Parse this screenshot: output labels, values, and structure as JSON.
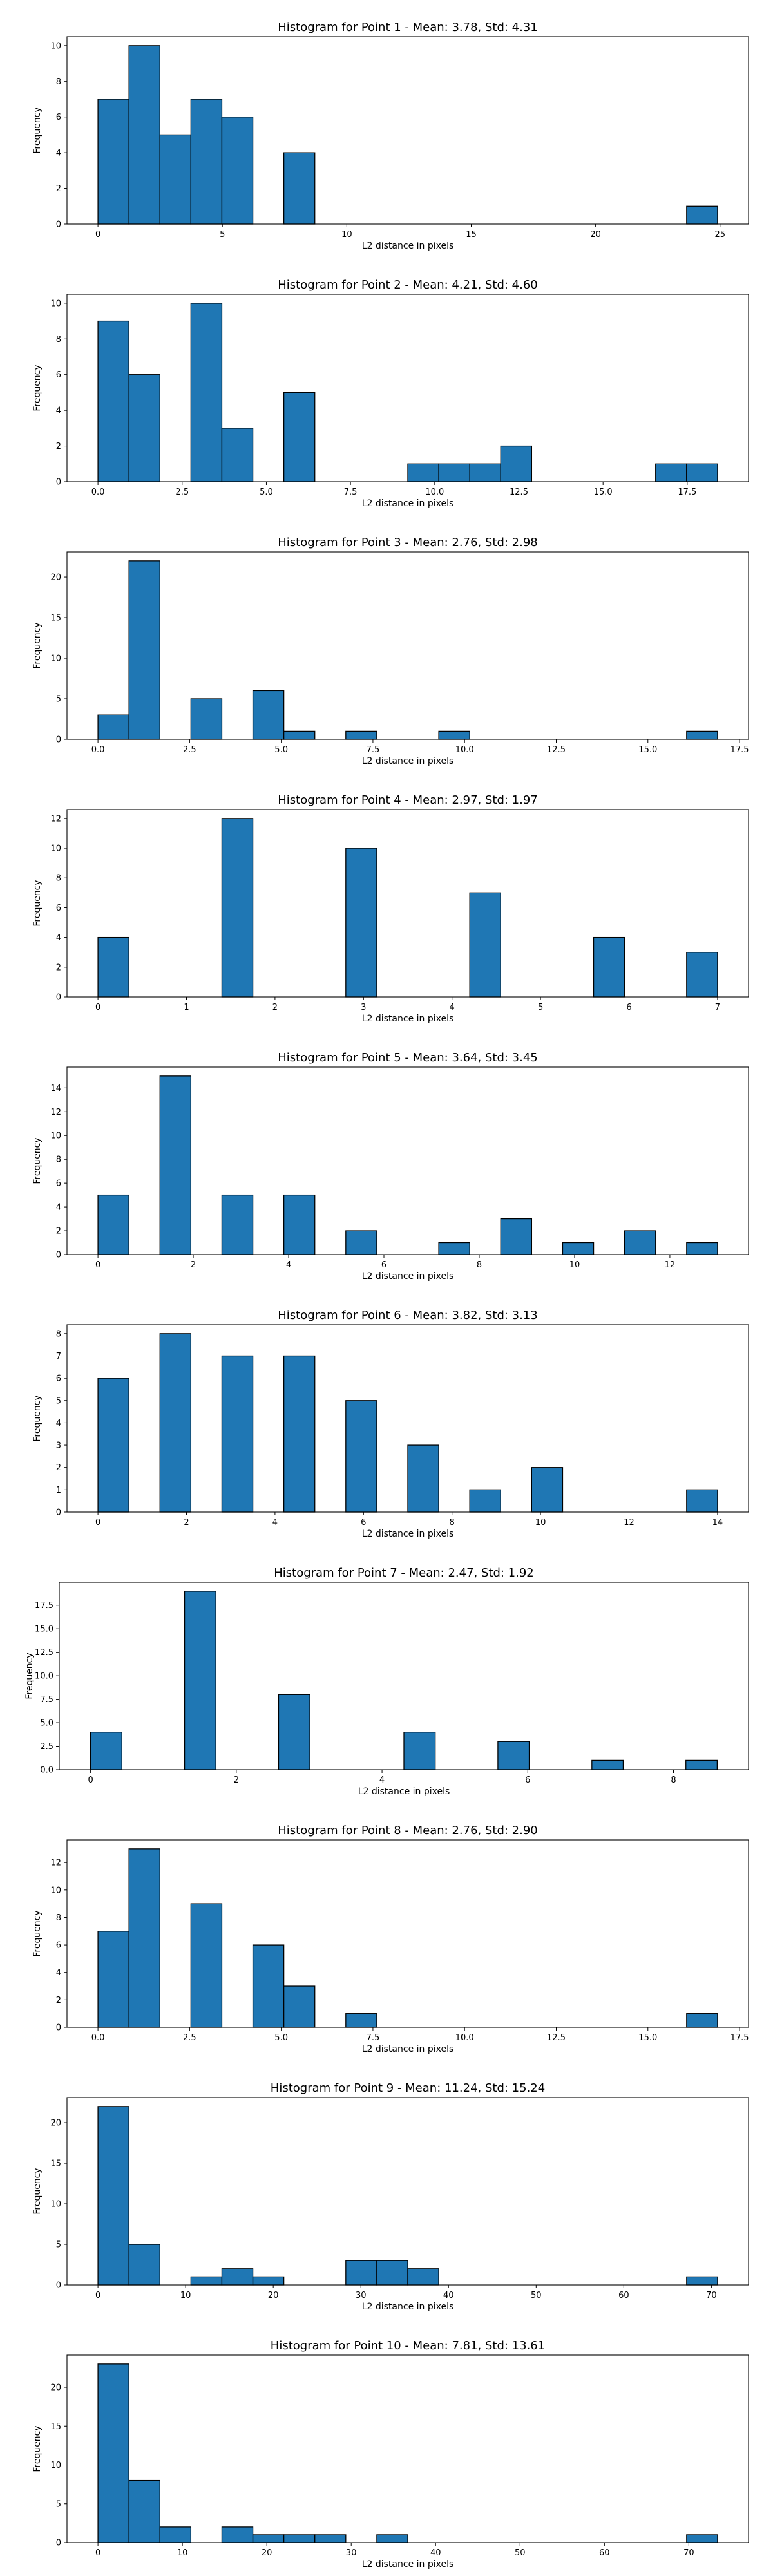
{
  "chart_data": [
    {
      "type": "bar",
      "title": "Histogram for Point 1 - Mean: 3.78, Std: 4.31",
      "xlabel": "L2 distance in pixels",
      "ylabel": "Frequency",
      "xlim": [
        -1.245,
        26.145
      ],
      "ylim": [
        0,
        10.5
      ],
      "xticks": [
        0,
        5,
        10,
        15,
        20,
        25
      ],
      "xtick_labels": [
        "0",
        "5",
        "10",
        "15",
        "20",
        "25"
      ],
      "yticks": [
        0,
        2,
        4,
        6,
        8,
        10
      ],
      "ytick_labels": [
        "0",
        "2",
        "4",
        "6",
        "8",
        "10"
      ],
      "bin_start": 0,
      "bin_width": 1.245,
      "bars": [
        {
          "bin": 0,
          "value": 7
        },
        {
          "bin": 1,
          "value": 10
        },
        {
          "bin": 2,
          "value": 5
        },
        {
          "bin": 3,
          "value": 7
        },
        {
          "bin": 4,
          "value": 6
        },
        {
          "bin": 6,
          "value": 4
        },
        {
          "bin": 19,
          "value": 1
        }
      ],
      "grid": false,
      "bar_color": "#1f77b4",
      "edge_color": "#000000"
    },
    {
      "type": "bar",
      "title": "Histogram for Point 2 - Mean: 4.21, Std: 4.60",
      "xlabel": "L2 distance in pixels",
      "ylabel": "Frequency",
      "xlim": [
        -0.92,
        19.32
      ],
      "ylim": [
        0,
        10.5
      ],
      "xticks": [
        0,
        2.5,
        5,
        7.5,
        10,
        12.5,
        15,
        17.5
      ],
      "xtick_labels": [
        "0.0",
        "2.5",
        "5.0",
        "7.5",
        "10.0",
        "12.5",
        "15.0",
        "17.5"
      ],
      "yticks": [
        0,
        2,
        4,
        6,
        8,
        10
      ],
      "ytick_labels": [
        "0",
        "2",
        "4",
        "6",
        "8",
        "10"
      ],
      "bin_start": 0,
      "bin_width": 0.92,
      "bars": [
        {
          "bin": 0,
          "value": 9
        },
        {
          "bin": 1,
          "value": 6
        },
        {
          "bin": 3,
          "value": 10
        },
        {
          "bin": 4,
          "value": 3
        },
        {
          "bin": 6,
          "value": 5
        },
        {
          "bin": 10,
          "value": 1
        },
        {
          "bin": 11,
          "value": 1
        },
        {
          "bin": 12,
          "value": 1
        },
        {
          "bin": 13,
          "value": 2
        },
        {
          "bin": 18,
          "value": 1
        },
        {
          "bin": 19,
          "value": 1
        }
      ],
      "grid": false,
      "bar_color": "#1f77b4",
      "edge_color": "#000000"
    },
    {
      "type": "bar",
      "title": "Histogram for Point 3 - Mean: 2.76, Std: 2.98",
      "xlabel": "L2 distance in pixels",
      "ylabel": "Frequency",
      "xlim": [
        -0.845,
        17.745
      ],
      "ylim": [
        0,
        23.1
      ],
      "xticks": [
        0,
        2.5,
        5,
        7.5,
        10,
        12.5,
        15,
        17.5
      ],
      "xtick_labels": [
        "0.0",
        "2.5",
        "5.0",
        "7.5",
        "10.0",
        "12.5",
        "15.0",
        "17.5"
      ],
      "yticks": [
        0,
        5,
        10,
        15,
        20
      ],
      "ytick_labels": [
        "0",
        "5",
        "10",
        "15",
        "20"
      ],
      "bin_start": 0,
      "bin_width": 0.845,
      "bars": [
        {
          "bin": 0,
          "value": 3
        },
        {
          "bin": 1,
          "value": 22
        },
        {
          "bin": 3,
          "value": 5
        },
        {
          "bin": 5,
          "value": 6
        },
        {
          "bin": 6,
          "value": 1
        },
        {
          "bin": 8,
          "value": 1
        },
        {
          "bin": 11,
          "value": 1
        },
        {
          "bin": 19,
          "value": 1
        }
      ],
      "grid": false,
      "bar_color": "#1f77b4",
      "edge_color": "#000000"
    },
    {
      "type": "bar",
      "title": "Histogram for Point 4 - Mean: 2.97, Std: 1.97",
      "xlabel": "L2 distance in pixels",
      "ylabel": "Frequency",
      "xlim": [
        -0.35,
        7.35
      ],
      "ylim": [
        0,
        12.6
      ],
      "xticks": [
        0,
        1,
        2,
        3,
        4,
        5,
        6,
        7
      ],
      "xtick_labels": [
        "0",
        "1",
        "2",
        "3",
        "4",
        "5",
        "6",
        "7"
      ],
      "yticks": [
        0,
        2,
        4,
        6,
        8,
        10,
        12
      ],
      "ytick_labels": [
        "0",
        "2",
        "4",
        "6",
        "8",
        "10",
        "12"
      ],
      "bin_start": 0,
      "bin_width": 0.35,
      "bars": [
        {
          "bin": 0,
          "value": 4
        },
        {
          "bin": 4,
          "value": 12
        },
        {
          "bin": 8,
          "value": 10
        },
        {
          "bin": 12,
          "value": 7
        },
        {
          "bin": 16,
          "value": 4
        },
        {
          "bin": 19,
          "value": 3
        }
      ],
      "grid": false,
      "bar_color": "#1f77b4",
      "edge_color": "#000000"
    },
    {
      "type": "bar",
      "title": "Histogram for Point 5 - Mean: 3.64, Std: 3.45",
      "xlabel": "L2 distance in pixels",
      "ylabel": "Frequency",
      "xlim": [
        -0.65,
        13.65
      ],
      "ylim": [
        0,
        15.75
      ],
      "xticks": [
        0,
        2,
        4,
        6,
        8,
        10,
        12
      ],
      "xtick_labels": [
        "0",
        "2",
        "4",
        "6",
        "8",
        "10",
        "12"
      ],
      "yticks": [
        0,
        2,
        4,
        6,
        8,
        10,
        12,
        14
      ],
      "ytick_labels": [
        "0",
        "2",
        "4",
        "6",
        "8",
        "10",
        "12",
        "14"
      ],
      "bin_start": 0,
      "bin_width": 0.65,
      "bars": [
        {
          "bin": 0,
          "value": 5
        },
        {
          "bin": 2,
          "value": 15
        },
        {
          "bin": 4,
          "value": 5
        },
        {
          "bin": 6,
          "value": 5
        },
        {
          "bin": 8,
          "value": 2
        },
        {
          "bin": 11,
          "value": 1
        },
        {
          "bin": 13,
          "value": 3
        },
        {
          "bin": 15,
          "value": 1
        },
        {
          "bin": 17,
          "value": 2
        },
        {
          "bin": 19,
          "value": 1
        }
      ],
      "grid": false,
      "bar_color": "#1f77b4",
      "edge_color": "#000000"
    },
    {
      "type": "bar",
      "title": "Histogram for Point 6 - Mean: 3.82, Std: 3.13",
      "xlabel": "L2 distance in pixels",
      "ylabel": "Frequency",
      "xlim": [
        -0.7,
        14.7
      ],
      "ylim": [
        0,
        8.4
      ],
      "xticks": [
        0,
        2,
        4,
        6,
        8,
        10,
        12,
        14
      ],
      "xtick_labels": [
        "0",
        "2",
        "4",
        "6",
        "8",
        "10",
        "12",
        "14"
      ],
      "yticks": [
        0,
        1,
        2,
        3,
        4,
        5,
        6,
        7,
        8
      ],
      "ytick_labels": [
        "0",
        "1",
        "2",
        "3",
        "4",
        "5",
        "6",
        "7",
        "8"
      ],
      "bin_start": 0,
      "bin_width": 0.7,
      "bars": [
        {
          "bin": 0,
          "value": 6
        },
        {
          "bin": 2,
          "value": 8
        },
        {
          "bin": 4,
          "value": 7
        },
        {
          "bin": 6,
          "value": 7
        },
        {
          "bin": 8,
          "value": 5
        },
        {
          "bin": 10,
          "value": 3
        },
        {
          "bin": 12,
          "value": 1
        },
        {
          "bin": 14,
          "value": 2
        },
        {
          "bin": 19,
          "value": 1
        }
      ],
      "grid": false,
      "bar_color": "#1f77b4",
      "edge_color": "#000000"
    },
    {
      "type": "bar",
      "title": "Histogram for Point 7 - Mean: 2.47, Std: 1.92",
      "xlabel": "L2 distance in pixels",
      "ylabel": "Frequency",
      "xlim": [
        -0.43,
        9.03
      ],
      "ylim": [
        0,
        19.95
      ],
      "xticks": [
        0,
        2,
        4,
        6,
        8
      ],
      "xtick_labels": [
        "0",
        "2",
        "4",
        "6",
        "8"
      ],
      "yticks": [
        0,
        2.5,
        5,
        7.5,
        10,
        12.5,
        15,
        17.5
      ],
      "ytick_labels": [
        "0.0",
        "2.5",
        "5.0",
        "7.5",
        "10.0",
        "12.5",
        "15.0",
        "17.5"
      ],
      "bin_start": 0,
      "bin_width": 0.43,
      "bars": [
        {
          "bin": 0,
          "value": 4
        },
        {
          "bin": 3,
          "value": 19
        },
        {
          "bin": 6,
          "value": 8
        },
        {
          "bin": 10,
          "value": 4
        },
        {
          "bin": 13,
          "value": 3
        },
        {
          "bin": 16,
          "value": 1
        },
        {
          "bin": 19,
          "value": 1
        }
      ],
      "grid": false,
      "bar_color": "#1f77b4",
      "edge_color": "#000000"
    },
    {
      "type": "bar",
      "title": "Histogram for Point 8 - Mean: 2.76, Std: 2.90",
      "xlabel": "L2 distance in pixels",
      "ylabel": "Frequency",
      "xlim": [
        -0.845,
        17.745
      ],
      "ylim": [
        0,
        13.65
      ],
      "xticks": [
        0,
        2.5,
        5,
        7.5,
        10,
        12.5,
        15,
        17.5
      ],
      "xtick_labels": [
        "0.0",
        "2.5",
        "5.0",
        "7.5",
        "10.0",
        "12.5",
        "15.0",
        "17.5"
      ],
      "yticks": [
        0,
        2,
        4,
        6,
        8,
        10,
        12
      ],
      "ytick_labels": [
        "0",
        "2",
        "4",
        "6",
        "8",
        "10",
        "12"
      ],
      "bin_start": 0,
      "bin_width": 0.845,
      "bars": [
        {
          "bin": 0,
          "value": 7
        },
        {
          "bin": 1,
          "value": 13
        },
        {
          "bin": 3,
          "value": 9
        },
        {
          "bin": 5,
          "value": 6
        },
        {
          "bin": 6,
          "value": 3
        },
        {
          "bin": 8,
          "value": 1
        },
        {
          "bin": 19,
          "value": 1
        }
      ],
      "grid": false,
      "bar_color": "#1f77b4",
      "edge_color": "#000000"
    },
    {
      "type": "bar",
      "title": "Histogram for Point 9 - Mean: 11.24, Std: 15.24",
      "xlabel": "L2 distance in pixels",
      "ylabel": "Frequency",
      "xlim": [
        -3.535,
        74.235
      ],
      "ylim": [
        0,
        23.1
      ],
      "xticks": [
        0,
        10,
        20,
        30,
        40,
        50,
        60,
        70
      ],
      "xtick_labels": [
        "0",
        "10",
        "20",
        "30",
        "40",
        "50",
        "60",
        "70"
      ],
      "yticks": [
        0,
        5,
        10,
        15,
        20
      ],
      "ytick_labels": [
        "0",
        "5",
        "10",
        "15",
        "20"
      ],
      "bin_start": 0,
      "bin_width": 3.535,
      "bars": [
        {
          "bin": 0,
          "value": 22
        },
        {
          "bin": 1,
          "value": 5
        },
        {
          "bin": 3,
          "value": 1
        },
        {
          "bin": 4,
          "value": 2
        },
        {
          "bin": 5,
          "value": 1
        },
        {
          "bin": 8,
          "value": 3
        },
        {
          "bin": 9,
          "value": 3
        },
        {
          "bin": 10,
          "value": 2
        },
        {
          "bin": 19,
          "value": 1
        }
      ],
      "grid": false,
      "bar_color": "#1f77b4",
      "edge_color": "#000000"
    },
    {
      "type": "bar",
      "title": "Histogram for Point 10 - Mean: 7.81, Std: 13.61",
      "xlabel": "L2 distance in pixels",
      "ylabel": "Frequency",
      "xlim": [
        -3.67,
        77.07
      ],
      "ylim": [
        0,
        24.15
      ],
      "xticks": [
        0,
        10,
        20,
        30,
        40,
        50,
        60,
        70
      ],
      "xtick_labels": [
        "0",
        "10",
        "20",
        "30",
        "40",
        "50",
        "60",
        "70"
      ],
      "yticks": [
        0,
        5,
        10,
        15,
        20
      ],
      "ytick_labels": [
        "0",
        "5",
        "10",
        "15",
        "20"
      ],
      "bin_start": 0,
      "bin_width": 3.67,
      "bars": [
        {
          "bin": 0,
          "value": 23
        },
        {
          "bin": 1,
          "value": 8
        },
        {
          "bin": 2,
          "value": 2
        },
        {
          "bin": 4,
          "value": 2
        },
        {
          "bin": 5,
          "value": 1
        },
        {
          "bin": 6,
          "value": 1
        },
        {
          "bin": 7,
          "value": 1
        },
        {
          "bin": 9,
          "value": 1
        },
        {
          "bin": 19,
          "value": 1
        }
      ],
      "grid": false,
      "bar_color": "#1f77b4",
      "edge_color": "#000000"
    }
  ]
}
